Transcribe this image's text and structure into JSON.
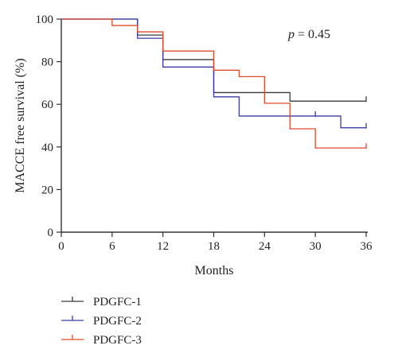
{
  "chart_data": {
    "type": "line",
    "step": true,
    "title": "",
    "xlabel": "Months",
    "ylabel": "MACCE free survival (%)",
    "xlim": [
      0,
      36
    ],
    "ylim": [
      0,
      100
    ],
    "xticks": [
      0,
      6,
      12,
      18,
      24,
      30,
      36
    ],
    "yticks": [
      0,
      20,
      40,
      60,
      80,
      100
    ],
    "grid": false,
    "legend_position": "bottom-left below plot",
    "annotation": {
      "label": "p",
      "text": " = 0.45"
    },
    "series": [
      {
        "name": "PDGFC-1",
        "color": "#3a3a3a",
        "x": [
          0,
          9,
          12,
          18,
          27,
          36
        ],
        "y": [
          100,
          92.5,
          81,
          65.5,
          61.5,
          61.5
        ],
        "censor": [
          {
            "x": 36,
            "y": 61.5
          }
        ]
      },
      {
        "name": "PDGFC-2",
        "color": "#3b3ba6",
        "x": [
          0,
          9,
          12,
          18,
          21,
          33,
          36
        ],
        "y": [
          100,
          91,
          77.5,
          63.5,
          54.5,
          49,
          49
        ],
        "censor": [
          {
            "x": 30,
            "y": 54.5
          },
          {
            "x": 36,
            "y": 49
          }
        ]
      },
      {
        "name": "PDGFC-3",
        "color": "#e04a2a",
        "x": [
          0,
          6,
          9,
          12,
          18,
          21,
          24,
          27,
          30,
          36
        ],
        "y": [
          100,
          97,
          94,
          85,
          76,
          73,
          60.5,
          48.5,
          39.5,
          39.5
        ],
        "censor": [
          {
            "x": 36,
            "y": 39.5
          }
        ]
      }
    ]
  }
}
